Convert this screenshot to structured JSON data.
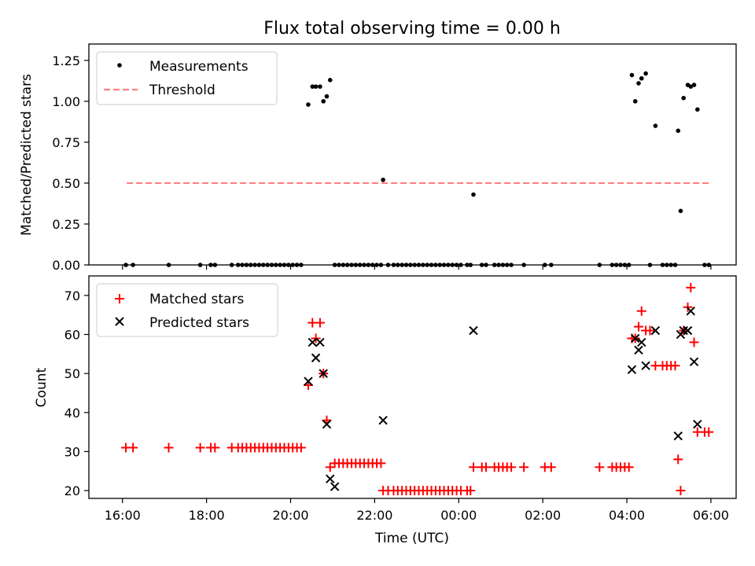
{
  "title": "Flux total observing time = 0.00 h",
  "x_axis": {
    "label": "Time (UTC)",
    "ticks": [
      "16:00",
      "18:00",
      "20:00",
      "22:00",
      "00:00",
      "02:00",
      "04:00",
      "06:00"
    ]
  },
  "chart_data": [
    {
      "type": "scatter",
      "ylabel": "Matched/Predicted stars",
      "ylim": [
        0,
        1.35
      ],
      "yticks": [
        "0.00",
        "0.25",
        "0.50",
        "0.75",
        "1.00",
        "1.25"
      ],
      "legend_position": "upper-left",
      "series": [
        {
          "name": "Measurements",
          "color": "#000000",
          "marker": "dot",
          "x": [
            16.08,
            16.25,
            17.1,
            17.85,
            18.1,
            18.2,
            18.6,
            18.75,
            18.85,
            18.95,
            19.05,
            19.15,
            19.25,
            19.35,
            19.45,
            19.55,
            19.65,
            19.75,
            19.85,
            19.95,
            20.05,
            20.15,
            20.25,
            20.42,
            20.52,
            20.6,
            20.7,
            20.78,
            20.86,
            20.94,
            21.05,
            21.15,
            21.25,
            21.35,
            21.45,
            21.55,
            21.65,
            21.75,
            21.85,
            21.95,
            22.05,
            22.15,
            22.2,
            22.32,
            22.45,
            22.55,
            22.65,
            22.75,
            22.85,
            22.95,
            23.05,
            23.15,
            23.25,
            23.35,
            23.45,
            23.55,
            23.65,
            23.75,
            23.85,
            23.95,
            24.05,
            24.2,
            24.28,
            24.35,
            24.55,
            24.65,
            24.85,
            24.95,
            25.05,
            25.15,
            25.25,
            25.55,
            26.05,
            26.2,
            27.35,
            27.65,
            27.75,
            27.85,
            27.95,
            28.05,
            28.12,
            28.2,
            28.28,
            28.35,
            28.45,
            28.55,
            28.68,
            28.85,
            28.95,
            29.05,
            29.15,
            29.22,
            29.28,
            29.35,
            29.45,
            29.52,
            29.6,
            29.68,
            29.85,
            29.95
          ],
          "y": [
            0,
            0,
            0,
            0,
            0,
            0,
            0,
            0,
            0,
            0,
            0,
            0,
            0,
            0,
            0,
            0,
            0,
            0,
            0,
            0,
            0,
            0,
            0,
            0.98,
            1.09,
            1.09,
            1.09,
            1.0,
            1.03,
            1.13,
            0,
            0,
            0,
            0,
            0,
            0,
            0,
            0,
            0,
            0,
            0,
            0,
            0.52,
            0,
            0,
            0,
            0,
            0,
            0,
            0,
            0,
            0,
            0,
            0,
            0,
            0,
            0,
            0,
            0,
            0,
            0,
            0,
            0,
            0.43,
            0,
            0,
            0,
            0,
            0,
            0,
            0,
            0,
            0,
            0,
            0,
            0,
            0,
            0,
            0,
            0,
            1.16,
            1.0,
            1.11,
            1.14,
            1.17,
            0,
            0.85,
            0,
            0,
            0,
            0,
            0.82,
            0.33,
            1.02,
            1.1,
            1.09,
            1.1,
            0.95,
            0,
            0
          ]
        },
        {
          "name": "Threshold",
          "color": "#ff8080",
          "style": "dashed",
          "x": [
            16.1,
            29.95
          ],
          "y": [
            0.5,
            0.5
          ]
        }
      ]
    },
    {
      "type": "scatter",
      "ylabel": "Count",
      "ylim": [
        18,
        75
      ],
      "yticks": [
        "20",
        "30",
        "40",
        "50",
        "60",
        "70"
      ],
      "legend_position": "upper-left",
      "series": [
        {
          "name": "Matched stars",
          "color": "#ff0000",
          "marker": "plus",
          "x": [
            16.08,
            16.25,
            17.1,
            17.85,
            18.1,
            18.2,
            18.6,
            18.75,
            18.85,
            18.95,
            19.05,
            19.15,
            19.25,
            19.35,
            19.45,
            19.55,
            19.65,
            19.75,
            19.85,
            19.95,
            20.05,
            20.15,
            20.25,
            20.42,
            20.52,
            20.6,
            20.7,
            20.78,
            20.86,
            20.94,
            21.05,
            21.15,
            21.25,
            21.35,
            21.45,
            21.55,
            21.65,
            21.75,
            21.85,
            21.95,
            22.05,
            22.15,
            22.2,
            22.32,
            22.45,
            22.55,
            22.65,
            22.75,
            22.85,
            22.95,
            23.05,
            23.15,
            23.25,
            23.35,
            23.45,
            23.55,
            23.65,
            23.75,
            23.85,
            23.95,
            24.05,
            24.2,
            24.28,
            24.35,
            24.55,
            24.65,
            24.85,
            24.95,
            25.05,
            25.15,
            25.25,
            25.55,
            26.05,
            26.2,
            27.35,
            27.65,
            27.75,
            27.85,
            27.95,
            28.05,
            28.12,
            28.2,
            28.28,
            28.35,
            28.45,
            28.55,
            28.68,
            28.85,
            28.95,
            29.05,
            29.15,
            29.22,
            29.28,
            29.35,
            29.45,
            29.52,
            29.6,
            29.68,
            29.85,
            29.95
          ],
          "y": [
            31,
            31,
            31,
            31,
            31,
            31,
            31,
            31,
            31,
            31,
            31,
            31,
            31,
            31,
            31,
            31,
            31,
            31,
            31,
            31,
            31,
            31,
            31,
            47,
            63,
            59,
            63,
            50,
            38,
            26,
            27,
            27,
            27,
            27,
            27,
            27,
            27,
            27,
            27,
            27,
            27,
            27,
            20,
            20,
            20,
            20,
            20,
            20,
            20,
            20,
            20,
            20,
            20,
            20,
            20,
            20,
            20,
            20,
            20,
            20,
            20,
            20,
            20,
            26,
            26,
            26,
            26,
            26,
            26,
            26,
            26,
            26,
            26,
            26,
            26,
            26,
            26,
            26,
            26,
            26,
            59,
            59,
            62,
            66,
            61,
            61,
            52,
            52,
            52,
            52,
            52,
            28,
            20,
            61,
            67,
            72,
            58,
            35,
            35,
            35
          ]
        },
        {
          "name": "Predicted stars",
          "color": "#000000",
          "marker": "x",
          "x": [
            20.42,
            20.52,
            20.6,
            20.7,
            20.78,
            20.86,
            20.94,
            21.05,
            22.2,
            24.35,
            28.12,
            28.2,
            28.28,
            28.35,
            28.45,
            28.68,
            29.22,
            29.28,
            29.35,
            29.45,
            29.52,
            29.6,
            29.68
          ],
          "y": [
            48,
            58,
            54,
            58,
            50,
            37,
            23,
            21,
            38,
            61,
            51,
            59,
            56,
            58,
            52,
            61,
            34,
            60,
            61,
            61,
            66,
            53,
            37
          ]
        }
      ]
    }
  ]
}
